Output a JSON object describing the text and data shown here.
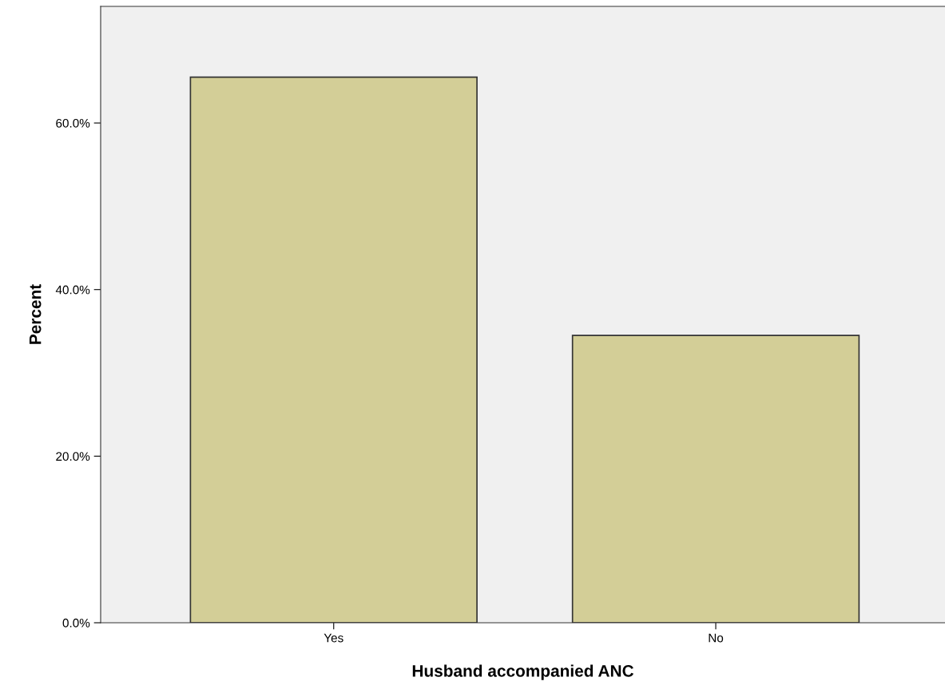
{
  "chart_data": {
    "type": "bar",
    "xlabel": "Husband accompanied ANC",
    "ylabel": "Percent",
    "categories": [
      "Yes",
      "No"
    ],
    "values": [
      65.5,
      34.5
    ],
    "color": "#d3ce97",
    "ylim": [
      0,
      74
    ],
    "yticks": [
      {
        "value": 0,
        "label": "0.0%"
      },
      {
        "value": 20,
        "label": "20.0%"
      },
      {
        "value": 40,
        "label": "40.0%"
      },
      {
        "value": 60,
        "label": "60.0%"
      }
    ],
    "grid": false
  }
}
